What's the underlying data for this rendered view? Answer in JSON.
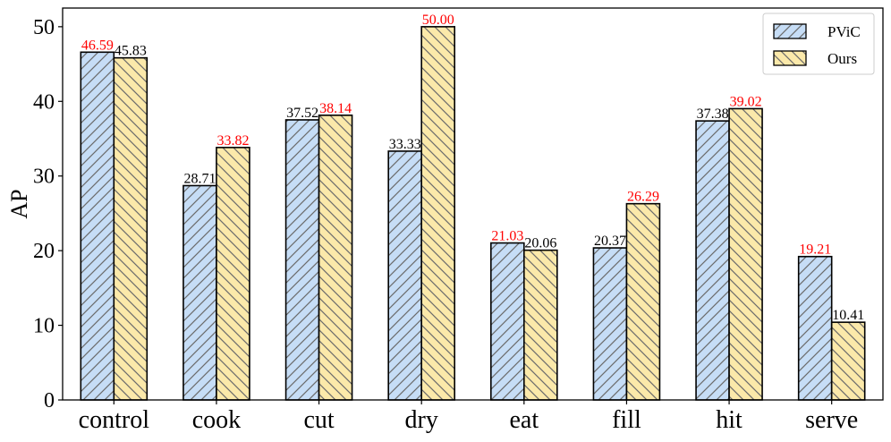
{
  "chart_data": {
    "type": "bar",
    "title": "",
    "xlabel": "",
    "ylabel": "AP",
    "ylim": [
      0,
      52.5
    ],
    "yticks": [
      0,
      10,
      20,
      30,
      40,
      50
    ],
    "grid": false,
    "legend_position": "top-right",
    "categories": [
      "control",
      "cook",
      "cut",
      "dry",
      "eat",
      "fill",
      "hit",
      "serve"
    ],
    "series": [
      {
        "name": "PViC",
        "values": [
          46.59,
          28.71,
          37.52,
          33.33,
          21.03,
          20.37,
          37.38,
          19.21
        ],
        "labels": [
          "46.59",
          "28.71",
          "37.52",
          "33.33",
          "21.03",
          "20.37",
          "37.38",
          "19.21"
        ],
        "fill": "#c6ddf6",
        "hatch": "forward-diagonal"
      },
      {
        "name": "Ours",
        "values": [
          45.83,
          33.82,
          38.14,
          50.0,
          20.06,
          26.29,
          39.02,
          10.41
        ],
        "labels": [
          "45.83",
          "33.82",
          "38.14",
          "50.00",
          "20.06",
          "26.29",
          "39.02",
          "10.41"
        ],
        "fill": "#fbe9aa",
        "hatch": "back-diagonal"
      }
    ],
    "colors": {
      "highlight_label": "#ff0000",
      "normal_label": "#000000",
      "hatch_line": "#6b6b6b",
      "edge": "#000000"
    }
  }
}
